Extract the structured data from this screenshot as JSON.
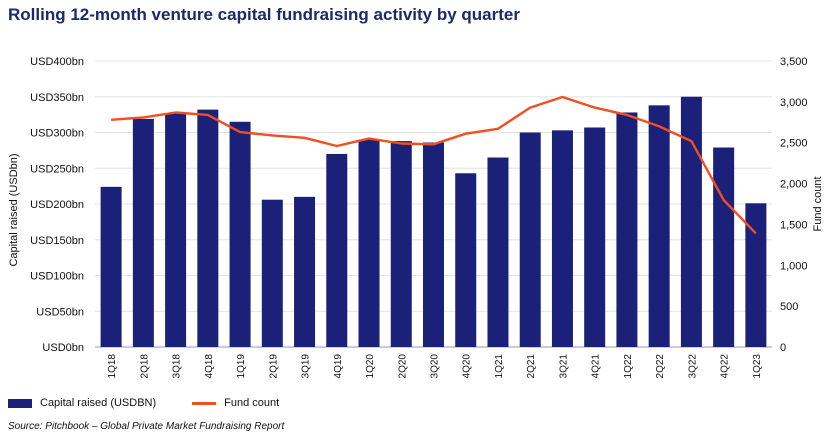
{
  "title": "Rolling 12-month venture capital fundraising activity by quarter",
  "source": "Source: Pitchbook – Global Private Market Fundraising Report",
  "chart_data": {
    "type": "bar",
    "categories": [
      "1Q18",
      "2Q18",
      "3Q18",
      "4Q18",
      "1Q19",
      "2Q19",
      "3Q19",
      "4Q19",
      "1Q20",
      "2Q20",
      "3Q20",
      "4Q20",
      "1Q21",
      "2Q21",
      "3Q21",
      "4Q21",
      "1Q22",
      "2Q22",
      "3Q22",
      "4Q22",
      "1Q23"
    ],
    "series": [
      {
        "name": "Capital raised (USDBN)",
        "kind": "bar",
        "axis": "left",
        "color": "#1b2079",
        "values": [
          224,
          319,
          327,
          332,
          315,
          206,
          210,
          270,
          290,
          288,
          286,
          243,
          265,
          300,
          303,
          307,
          328,
          338,
          350,
          279,
          201
        ]
      },
      {
        "name": "Fund count",
        "kind": "line",
        "axis": "right",
        "color": "#f04e23",
        "values": [
          2780,
          2810,
          2870,
          2840,
          2630,
          2590,
          2560,
          2460,
          2550,
          2490,
          2480,
          2610,
          2670,
          2930,
          3060,
          2930,
          2840,
          2700,
          2520,
          1800,
          1390
        ]
      }
    ],
    "y_left": {
      "label": "Capital raised (USDbn)",
      "lim": [
        0,
        400
      ],
      "ticks": [
        0,
        50,
        100,
        150,
        200,
        250,
        300,
        350,
        400
      ],
      "tick_labels": [
        "USD0bn",
        "USD50bn",
        "USD100bn",
        "USD150bn",
        "USD200bn",
        "USD250bn",
        "USD300bn",
        "USD350bn",
        "USD400bn"
      ]
    },
    "y_right": {
      "label": "Fund count",
      "lim": [
        0,
        3500
      ],
      "ticks": [
        0,
        500,
        1000,
        1500,
        2000,
        2500,
        3000,
        3500
      ],
      "tick_labels": [
        "0",
        "500",
        "1,000",
        "1,500",
        "2,000",
        "2,500",
        "3,000",
        "3,500"
      ]
    },
    "grid": "horizontal",
    "legend": "bottom-left"
  }
}
